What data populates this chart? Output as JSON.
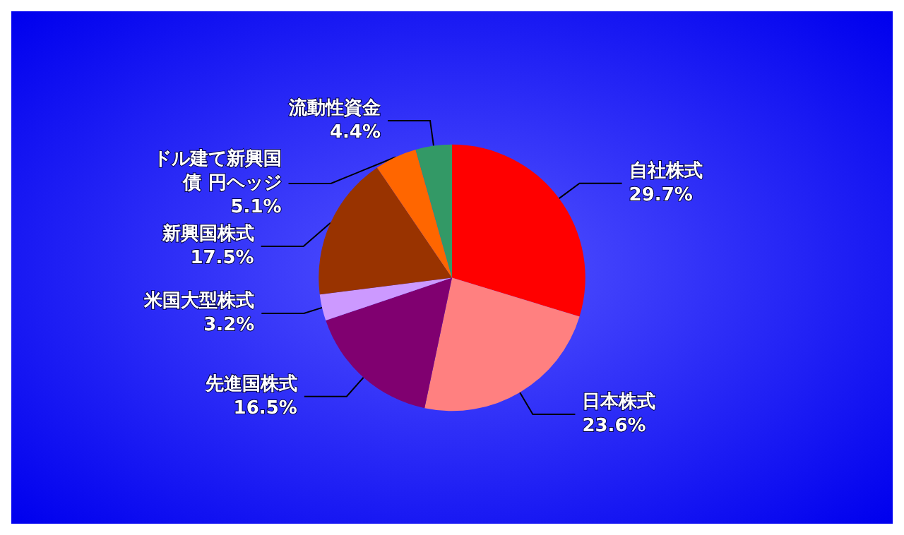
{
  "chart_data": {
    "type": "pie",
    "categories": [
      "自社株式",
      "日本株式",
      "先進国株式",
      "米国大型株式",
      "新興国株式",
      "ドル建て新興国債 円ヘッジ",
      "流動性資金"
    ],
    "values": [
      29.7,
      23.6,
      16.5,
      3.2,
      17.5,
      5.1,
      4.4
    ],
    "value_labels": [
      "29.7%",
      "23.6%",
      "16.5%",
      "3.2%",
      "17.5%",
      "5.1%",
      "4.4%"
    ],
    "colors": [
      "#ff0000",
      "#ff8080",
      "#800070",
      "#cc99ff",
      "#993300",
      "#ff6600",
      "#339966"
    ],
    "legend": false
  }
}
